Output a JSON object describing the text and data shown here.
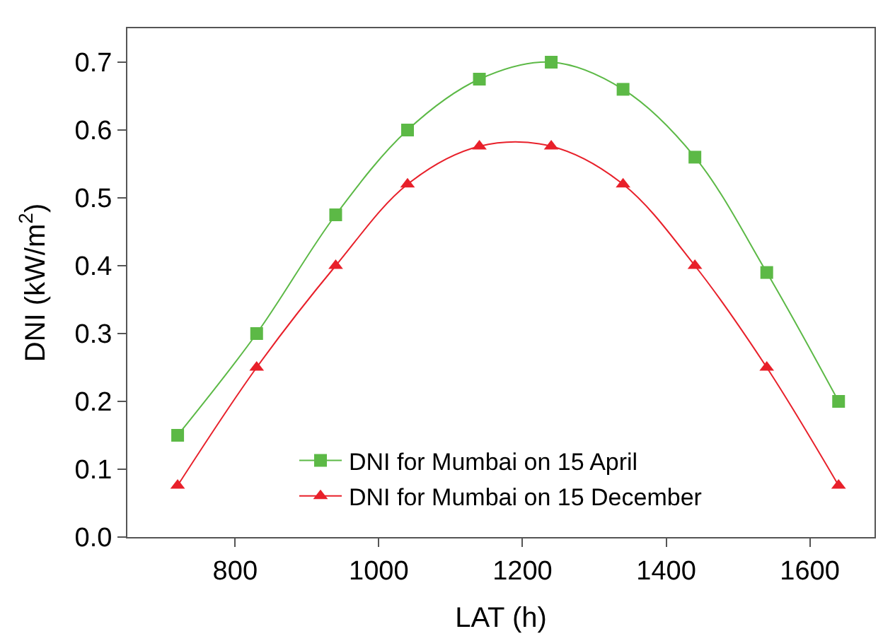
{
  "chart_data": {
    "type": "line",
    "xlabel": "LAT (h)",
    "ylabel": "DNI (kW/m$^{2}$)",
    "x": [
      720,
      830,
      940,
      1040,
      1140,
      1240,
      1340,
      1440,
      1540,
      1640
    ],
    "series": [
      {
        "name": "DNI for Mumbai on 15 April",
        "color": "#5cb946",
        "marker": "square",
        "values": [
          0.15,
          0.3,
          0.475,
          0.6,
          0.675,
          0.7,
          0.66,
          0.56,
          0.39,
          0.2
        ]
      },
      {
        "name": "DNI for Mumbai on 15 December",
        "color": "#e8202a",
        "marker": "triangle",
        "values": [
          0.076,
          0.25,
          0.4,
          0.52,
          0.576,
          0.576,
          0.52,
          0.4,
          0.25,
          0.076
        ]
      }
    ],
    "xlim": [
      650,
      1690
    ],
    "xticks": [
      800,
      1000,
      1200,
      1400,
      1600
    ],
    "ylim": [
      0,
      0.75
    ],
    "yticks": [
      {
        "value": 0,
        "label": "0.0"
      },
      0.1,
      0.2,
      0.3,
      0.4,
      0.5,
      0.6,
      0.7
    ],
    "legend": "bottom",
    "line_style": "solid"
  }
}
